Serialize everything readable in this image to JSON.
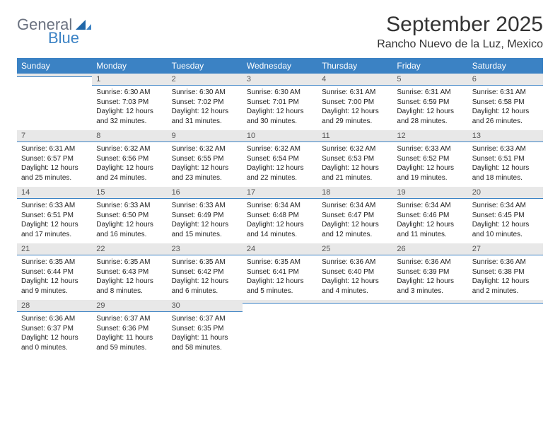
{
  "brand": {
    "general": "General",
    "blue": "Blue"
  },
  "title": "September 2025",
  "location": "Rancho Nuevo de la Luz, Mexico",
  "colors": {
    "header_bg": "#3b82c4",
    "header_text": "#ffffff",
    "daynum_bg": "#e8e8e8",
    "daynum_border": "#3b82c4",
    "text": "#222222",
    "title_text": "#333333"
  },
  "dow": [
    "Sunday",
    "Monday",
    "Tuesday",
    "Wednesday",
    "Thursday",
    "Friday",
    "Saturday"
  ],
  "weeks": [
    [
      {
        "n": "",
        "sr": "",
        "ss": "",
        "dl": ""
      },
      {
        "n": "1",
        "sr": "Sunrise: 6:30 AM",
        "ss": "Sunset: 7:03 PM",
        "dl": "Daylight: 12 hours and 32 minutes."
      },
      {
        "n": "2",
        "sr": "Sunrise: 6:30 AM",
        "ss": "Sunset: 7:02 PM",
        "dl": "Daylight: 12 hours and 31 minutes."
      },
      {
        "n": "3",
        "sr": "Sunrise: 6:30 AM",
        "ss": "Sunset: 7:01 PM",
        "dl": "Daylight: 12 hours and 30 minutes."
      },
      {
        "n": "4",
        "sr": "Sunrise: 6:31 AM",
        "ss": "Sunset: 7:00 PM",
        "dl": "Daylight: 12 hours and 29 minutes."
      },
      {
        "n": "5",
        "sr": "Sunrise: 6:31 AM",
        "ss": "Sunset: 6:59 PM",
        "dl": "Daylight: 12 hours and 28 minutes."
      },
      {
        "n": "6",
        "sr": "Sunrise: 6:31 AM",
        "ss": "Sunset: 6:58 PM",
        "dl": "Daylight: 12 hours and 26 minutes."
      }
    ],
    [
      {
        "n": "7",
        "sr": "Sunrise: 6:31 AM",
        "ss": "Sunset: 6:57 PM",
        "dl": "Daylight: 12 hours and 25 minutes."
      },
      {
        "n": "8",
        "sr": "Sunrise: 6:32 AM",
        "ss": "Sunset: 6:56 PM",
        "dl": "Daylight: 12 hours and 24 minutes."
      },
      {
        "n": "9",
        "sr": "Sunrise: 6:32 AM",
        "ss": "Sunset: 6:55 PM",
        "dl": "Daylight: 12 hours and 23 minutes."
      },
      {
        "n": "10",
        "sr": "Sunrise: 6:32 AM",
        "ss": "Sunset: 6:54 PM",
        "dl": "Daylight: 12 hours and 22 minutes."
      },
      {
        "n": "11",
        "sr": "Sunrise: 6:32 AM",
        "ss": "Sunset: 6:53 PM",
        "dl": "Daylight: 12 hours and 21 minutes."
      },
      {
        "n": "12",
        "sr": "Sunrise: 6:33 AM",
        "ss": "Sunset: 6:52 PM",
        "dl": "Daylight: 12 hours and 19 minutes."
      },
      {
        "n": "13",
        "sr": "Sunrise: 6:33 AM",
        "ss": "Sunset: 6:51 PM",
        "dl": "Daylight: 12 hours and 18 minutes."
      }
    ],
    [
      {
        "n": "14",
        "sr": "Sunrise: 6:33 AM",
        "ss": "Sunset: 6:51 PM",
        "dl": "Daylight: 12 hours and 17 minutes."
      },
      {
        "n": "15",
        "sr": "Sunrise: 6:33 AM",
        "ss": "Sunset: 6:50 PM",
        "dl": "Daylight: 12 hours and 16 minutes."
      },
      {
        "n": "16",
        "sr": "Sunrise: 6:33 AM",
        "ss": "Sunset: 6:49 PM",
        "dl": "Daylight: 12 hours and 15 minutes."
      },
      {
        "n": "17",
        "sr": "Sunrise: 6:34 AM",
        "ss": "Sunset: 6:48 PM",
        "dl": "Daylight: 12 hours and 14 minutes."
      },
      {
        "n": "18",
        "sr": "Sunrise: 6:34 AM",
        "ss": "Sunset: 6:47 PM",
        "dl": "Daylight: 12 hours and 12 minutes."
      },
      {
        "n": "19",
        "sr": "Sunrise: 6:34 AM",
        "ss": "Sunset: 6:46 PM",
        "dl": "Daylight: 12 hours and 11 minutes."
      },
      {
        "n": "20",
        "sr": "Sunrise: 6:34 AM",
        "ss": "Sunset: 6:45 PM",
        "dl": "Daylight: 12 hours and 10 minutes."
      }
    ],
    [
      {
        "n": "21",
        "sr": "Sunrise: 6:35 AM",
        "ss": "Sunset: 6:44 PM",
        "dl": "Daylight: 12 hours and 9 minutes."
      },
      {
        "n": "22",
        "sr": "Sunrise: 6:35 AM",
        "ss": "Sunset: 6:43 PM",
        "dl": "Daylight: 12 hours and 8 minutes."
      },
      {
        "n": "23",
        "sr": "Sunrise: 6:35 AM",
        "ss": "Sunset: 6:42 PM",
        "dl": "Daylight: 12 hours and 6 minutes."
      },
      {
        "n": "24",
        "sr": "Sunrise: 6:35 AM",
        "ss": "Sunset: 6:41 PM",
        "dl": "Daylight: 12 hours and 5 minutes."
      },
      {
        "n": "25",
        "sr": "Sunrise: 6:36 AM",
        "ss": "Sunset: 6:40 PM",
        "dl": "Daylight: 12 hours and 4 minutes."
      },
      {
        "n": "26",
        "sr": "Sunrise: 6:36 AM",
        "ss": "Sunset: 6:39 PM",
        "dl": "Daylight: 12 hours and 3 minutes."
      },
      {
        "n": "27",
        "sr": "Sunrise: 6:36 AM",
        "ss": "Sunset: 6:38 PM",
        "dl": "Daylight: 12 hours and 2 minutes."
      }
    ],
    [
      {
        "n": "28",
        "sr": "Sunrise: 6:36 AM",
        "ss": "Sunset: 6:37 PM",
        "dl": "Daylight: 12 hours and 0 minutes."
      },
      {
        "n": "29",
        "sr": "Sunrise: 6:37 AM",
        "ss": "Sunset: 6:36 PM",
        "dl": "Daylight: 11 hours and 59 minutes."
      },
      {
        "n": "30",
        "sr": "Sunrise: 6:37 AM",
        "ss": "Sunset: 6:35 PM",
        "dl": "Daylight: 11 hours and 58 minutes."
      },
      {
        "n": "",
        "sr": "",
        "ss": "",
        "dl": ""
      },
      {
        "n": "",
        "sr": "",
        "ss": "",
        "dl": ""
      },
      {
        "n": "",
        "sr": "",
        "ss": "",
        "dl": ""
      },
      {
        "n": "",
        "sr": "",
        "ss": "",
        "dl": ""
      }
    ]
  ]
}
